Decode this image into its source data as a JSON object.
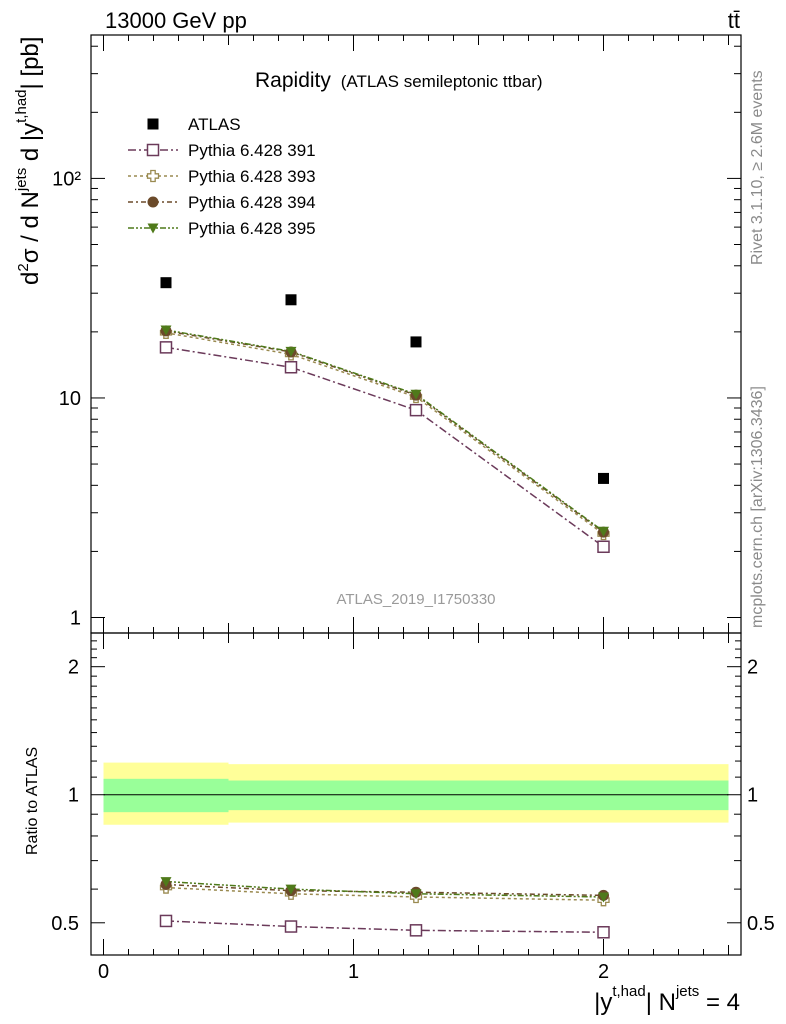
{
  "header": {
    "left": "13000 GeV pp",
    "right": "tt̄"
  },
  "side_labels": {
    "rivet": "Rivet 3.1.10, ≥ 2.6M events",
    "mcplots": "mcplots.cern.ch [arXiv:1306.3436]"
  },
  "plot": {
    "title": "Rapidity",
    "subtitle": "(ATLAS semileptonic ttbar)",
    "analysis": "ATLAS_2019_I1750330",
    "ylabel_main": "d²σ / d N^jets d |y^t,had| [pb]",
    "ylabel_ratio": "Ratio to ATLAS",
    "xlabel": "|y^t,had| N^jets = 4",
    "ratio_ticks": [
      "2",
      "1",
      "0.5"
    ],
    "main_ticks": [
      "1",
      "10",
      "10²"
    ],
    "x_ticks": [
      "0",
      "1",
      "2"
    ]
  },
  "chart_data": [
    {
      "type": "scatter",
      "title": "Rapidity (ATLAS semileptonic ttbar)",
      "xlabel": "|y^t,had| N^jets = 4",
      "ylabel": "d²σ / d N^jets d |y^t,had| [pb]",
      "yscale": "log",
      "ylim": [
        0.85,
        450
      ],
      "xlim": [
        -0.05,
        2.55
      ],
      "x": [
        0.25,
        0.75,
        1.25,
        2.0
      ],
      "bins": [
        [
          0,
          0.5
        ],
        [
          0.5,
          1.0
        ],
        [
          1.0,
          1.5
        ],
        [
          1.5,
          2.5
        ]
      ],
      "legend_position": "top-left",
      "series": [
        {
          "name": "ATLAS",
          "values": [
            33.5,
            28.0,
            18.0,
            4.3
          ],
          "color": "#000000",
          "marker": "filled-square"
        },
        {
          "name": "Pythia 6.428 391",
          "values": [
            17.0,
            13.8,
            8.8,
            2.1
          ],
          "color": "#6b3a5a",
          "marker": "open-square"
        },
        {
          "name": "Pythia 6.428 393",
          "values": [
            19.8,
            15.8,
            10.1,
            2.4
          ],
          "color": "#9a8a50",
          "marker": "open-cross"
        },
        {
          "name": "Pythia 6.428 394",
          "values": [
            20.2,
            16.2,
            10.3,
            2.45
          ],
          "color": "#6b4a2a",
          "marker": "filled-circle"
        },
        {
          "name": "Pythia 6.428 395",
          "values": [
            20.4,
            16.3,
            10.4,
            2.47
          ],
          "color": "#4f7a1a",
          "marker": "filled-triangle-down"
        }
      ]
    },
    {
      "type": "scatter",
      "ylabel": "Ratio to ATLAS",
      "xlabel": "|y^t,had| N^jets = 4",
      "yscale": "log",
      "ylim": [
        0.42,
        2.4
      ],
      "xlim": [
        -0.05,
        2.55
      ],
      "x": [
        0.25,
        0.75,
        1.25,
        2.0
      ],
      "reference_line": 1,
      "bands": {
        "outer": {
          "color": "#ffff99",
          "bins": [
            [
              0,
              0.5,
              0.85,
              1.19
            ],
            [
              0.5,
              1.0,
              0.86,
              1.18
            ],
            [
              1.0,
              1.5,
              0.86,
              1.18
            ],
            [
              1.5,
              2.5,
              0.86,
              1.18
            ]
          ]
        },
        "inner": {
          "color": "#99ff99",
          "bins": [
            [
              0,
              0.5,
              0.91,
              1.09
            ],
            [
              0.5,
              1.0,
              0.92,
              1.08
            ],
            [
              1.0,
              1.5,
              0.92,
              1.08
            ],
            [
              1.5,
              2.5,
              0.92,
              1.08
            ]
          ]
        }
      },
      "series": [
        {
          "name": "Pythia 6.428 391",
          "values": [
            0.505,
            0.49,
            0.48,
            0.475
          ],
          "color": "#6b3a5a",
          "marker": "open-square"
        },
        {
          "name": "Pythia 6.428 393",
          "values": [
            0.605,
            0.585,
            0.575,
            0.565
          ],
          "color": "#9a8a50",
          "marker": "open-cross"
        },
        {
          "name": "Pythia 6.428 394",
          "values": [
            0.615,
            0.595,
            0.59,
            0.58
          ],
          "color": "#6b4a2a",
          "marker": "filled-circle"
        },
        {
          "name": "Pythia 6.428 395",
          "values": [
            0.625,
            0.6,
            0.585,
            0.575
          ],
          "color": "#4f7a1a",
          "marker": "filled-triangle-down"
        }
      ]
    }
  ]
}
